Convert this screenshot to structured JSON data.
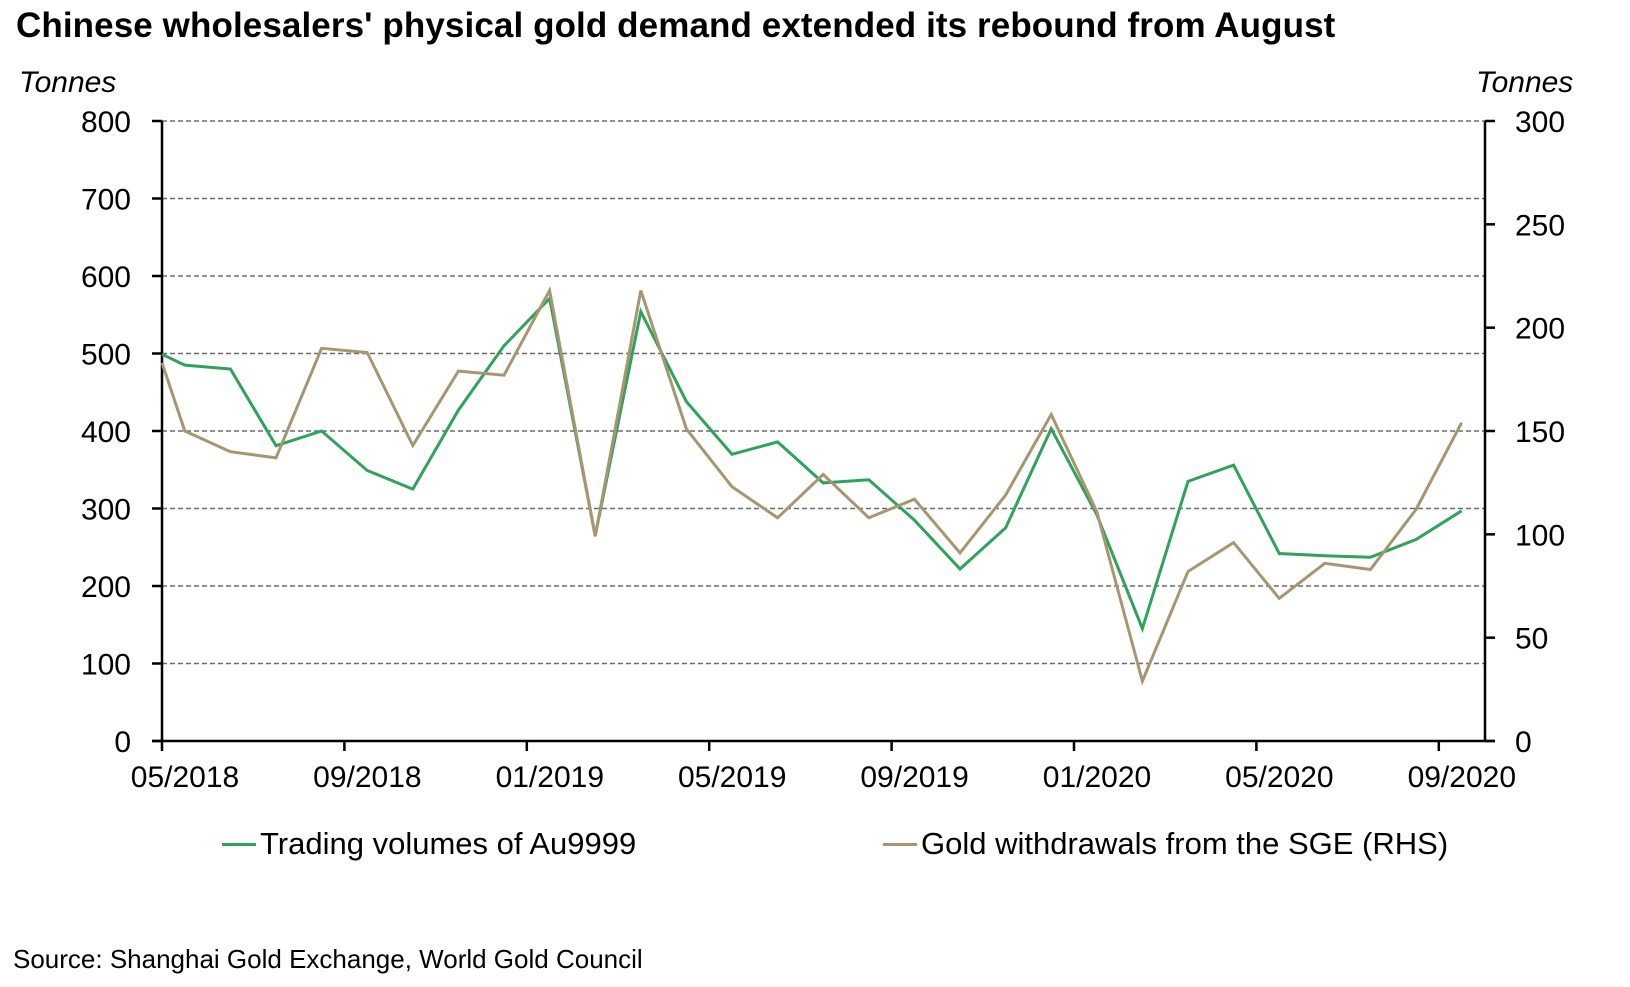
{
  "chart_data": {
    "type": "line",
    "title": "Chinese wholesalers' physical gold demand extended its rebound from August",
    "ylabel_left": "Tonnes",
    "ylabel_right": "Tonnes",
    "xlabel": "",
    "x_tick_labels": [
      "05/2018",
      "09/2018",
      "01/2019",
      "05/2019",
      "09/2019",
      "01/2020",
      "05/2020",
      "09/2020"
    ],
    "x_ticks_months_from_start": [
      0,
      4,
      8,
      12,
      16,
      20,
      24,
      28
    ],
    "x_range_months": [
      0,
      29
    ],
    "x_months_from_start": [
      0,
      0.5,
      1.5,
      2.5,
      3.5,
      4.5,
      5.5,
      6.5,
      7.5,
      8.5,
      9.5,
      10.5,
      11.5,
      12.5,
      13.5,
      14.5,
      15.5,
      16.5,
      17.5,
      18.5,
      19.5,
      20.5,
      21.5,
      22.5,
      23.5,
      24.5,
      25.5,
      26.5,
      27.5,
      28.5
    ],
    "y_left": {
      "range": [
        0,
        800
      ],
      "ticks": [
        0,
        100,
        200,
        300,
        400,
        500,
        600,
        700,
        800
      ]
    },
    "y_right": {
      "range": [
        0,
        300
      ],
      "ticks": [
        0,
        50,
        100,
        150,
        200,
        250,
        300
      ]
    },
    "grid": "horizontal dashed",
    "legend_position": "bottom",
    "series": [
      {
        "name": "Trading volumes of Au9999",
        "axis": "left",
        "color": "#2ea35a",
        "values": [
          499,
          485,
          480,
          381,
          400,
          349,
          325,
          427,
          510,
          571,
          265,
          554,
          438,
          370,
          386,
          333,
          337,
          285,
          222,
          275,
          403,
          292,
          145,
          335,
          356,
          242,
          239,
          237,
          260,
          297
        ]
      },
      {
        "name": "Gold withdrawals from the SGE (RHS)",
        "axis": "right",
        "color": "#a79670",
        "values": [
          183,
          150,
          140,
          137,
          190,
          188,
          143,
          179,
          177,
          218,
          99,
          218,
          151,
          123,
          108,
          129,
          108,
          117,
          91,
          119,
          158,
          111,
          29,
          82,
          96,
          69,
          86,
          83,
          112,
          154
        ]
      }
    ],
    "source": "Source: Shanghai Gold Exchange, World Gold Council"
  }
}
